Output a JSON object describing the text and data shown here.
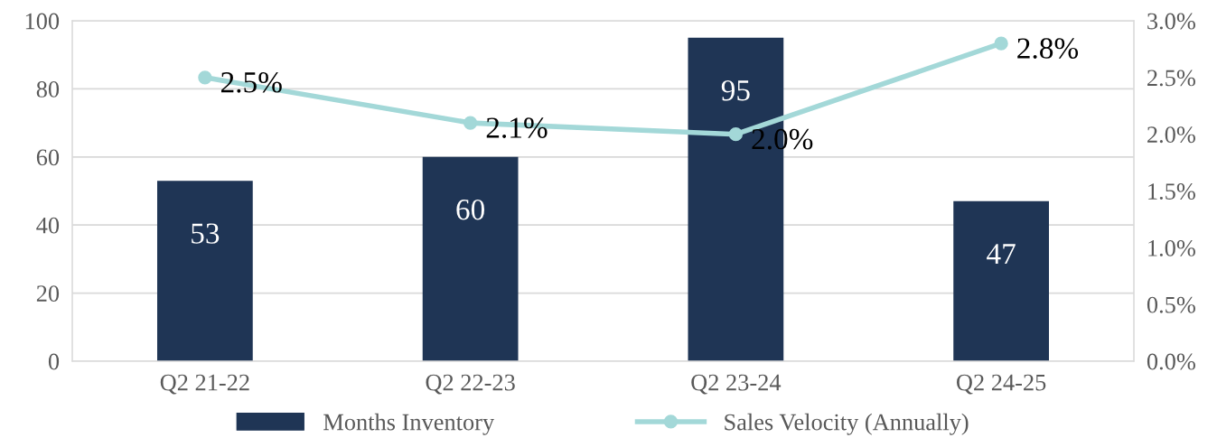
{
  "chart_data": {
    "type": "bar",
    "categories": [
      "Q2 21-22",
      "Q2 22-23",
      "Q2 23-24",
      "Q2 24-25"
    ],
    "series": [
      {
        "name": "Months Inventory",
        "color": "#1f3555",
        "values": [
          53,
          60,
          95,
          47
        ]
      },
      {
        "name": "Sales Velocity (Annually)",
        "type": "line",
        "axis": "y2",
        "color": "#a3d8d8",
        "values": [
          2.5,
          2.1,
          2.0,
          2.8
        ],
        "value_labels": [
          "2.5%",
          "2.1%",
          "2.0%",
          "2.8%"
        ]
      }
    ],
    "data_labels": true,
    "ylim": [
      0,
      100
    ],
    "yticks": [
      0,
      20,
      40,
      60,
      80,
      100
    ],
    "y2lim": [
      0,
      3
    ],
    "y2ticks": [
      {
        "value": 0,
        "label": "0.0%"
      },
      {
        "value": 0.5,
        "label": "0.5%"
      },
      {
        "value": 1,
        "label": "1.0%"
      },
      {
        "value": 1.5,
        "label": "1.5%"
      },
      {
        "value": 2,
        "label": "2.0%"
      },
      {
        "value": 2.5,
        "label": "2.5%"
      },
      {
        "value": 3,
        "label": "3.0%"
      }
    ],
    "grid": "y",
    "legend": "bottom",
    "marker": "circle"
  }
}
